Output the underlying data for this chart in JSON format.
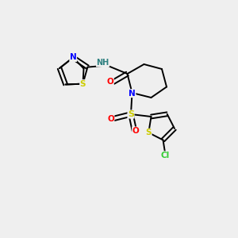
{
  "background_color": "#efefef",
  "atom_colors": {
    "C": "#000000",
    "N": "#0000ff",
    "O": "#ff0000",
    "S": "#cccc00",
    "Cl": "#33cc33",
    "H": "#2f8080"
  },
  "figsize": [
    3.0,
    3.0
  ],
  "dpi": 100,
  "lw": 1.4,
  "fontsize": 7.5
}
